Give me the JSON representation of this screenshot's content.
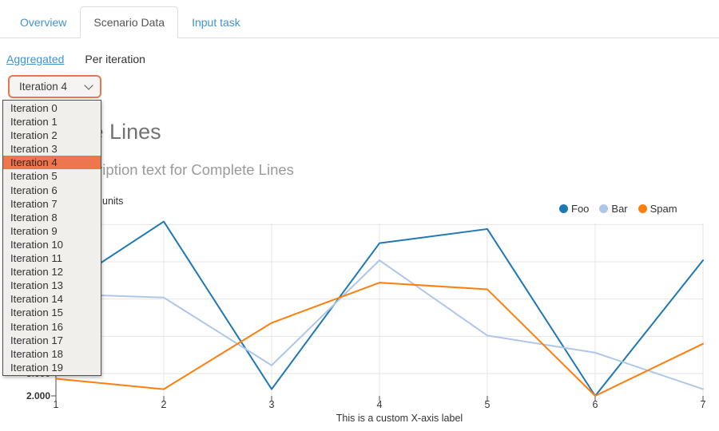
{
  "tabs": [
    {
      "label": "Overview",
      "active": false
    },
    {
      "label": "Scenario Data",
      "active": true
    },
    {
      "label": "Input task",
      "active": false
    }
  ],
  "subnav": {
    "aggregated_label": "Aggregated",
    "per_iteration_label": "Per iteration"
  },
  "iteration_select": {
    "value": "Iteration 4",
    "selected_index": 4,
    "options": [
      "Iteration 0",
      "Iteration 1",
      "Iteration 2",
      "Iteration 3",
      "Iteration 4",
      "Iteration 5",
      "Iteration 6",
      "Iteration 7",
      "Iteration 8",
      "Iteration 9",
      "Iteration 10",
      "Iteration 11",
      "Iteration 12",
      "Iteration 13",
      "Iteration 14",
      "Iteration 15",
      "Iteration 16",
      "Iteration 17",
      "Iteration 18",
      "Iteration 19"
    ]
  },
  "colors": {
    "link_blue": "#4292cf",
    "active_tab_text": "#555555",
    "select_focus_border": "#e8764e",
    "option_highlight": "#ed764d",
    "grid_line": "#e5e5e5",
    "axis_line": "#4d4d4d"
  },
  "chart_data": {
    "type": "line",
    "title": "Complete Lines",
    "subtitle": "Description text for Complete Lines",
    "y_axis_unit_label": "units",
    "xlabel": "This is a custom X-axis label",
    "x": [
      1,
      2,
      3,
      4,
      5,
      6,
      7
    ],
    "series": [
      {
        "name": "Foo",
        "color": "#1f77b4",
        "values": [
          15.9,
          25.4,
          2.9,
          22.5,
          24.4,
          2.0,
          20.2
        ]
      },
      {
        "name": "Bar",
        "color": "#aec7e8",
        "values": [
          15.7,
          15.2,
          6.1,
          20.2,
          10.1,
          7.8,
          2.9
        ]
      },
      {
        "name": "Spam",
        "color": "#ff7f0e",
        "values": [
          4.3,
          2.9,
          11.8,
          17.2,
          16.3,
          2.0,
          9.0
        ]
      }
    ],
    "y_min": 2,
    "y_gridline_values": [
      5,
      10,
      15,
      20,
      25
    ],
    "y_tick_labels_visible": [
      "5.000",
      "2.000"
    ],
    "tick_label_format": "value + \".000\"",
    "grid": true,
    "legend_position": "top-right"
  }
}
